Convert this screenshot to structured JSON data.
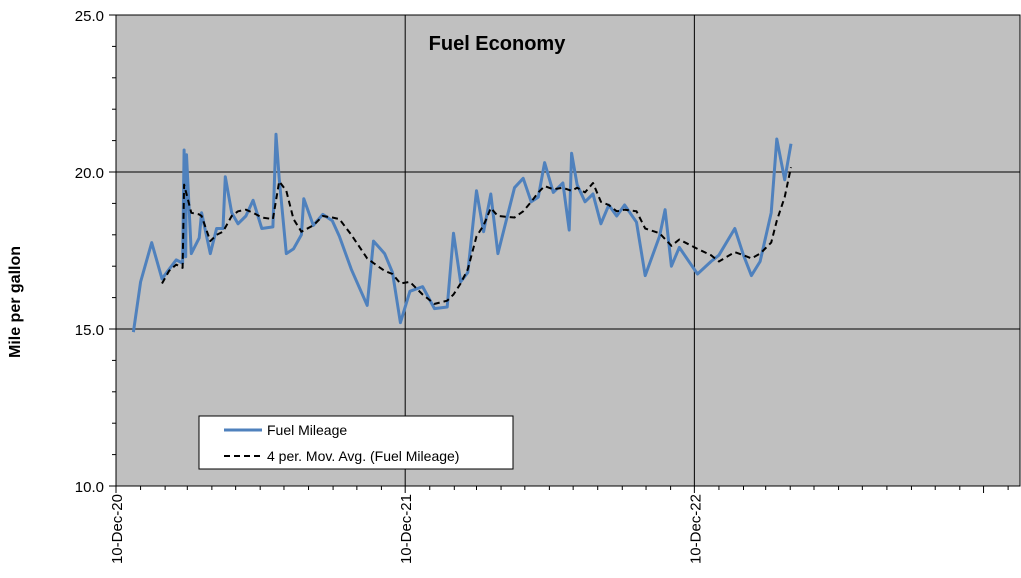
{
  "chart_data": {
    "type": "line",
    "title": "Fuel Economy",
    "xlabel": "",
    "ylabel": "Mile per gallon",
    "ylim": [
      10,
      25
    ],
    "y_ticks": [
      "10.0",
      "15.0",
      "20.0",
      "25.0"
    ],
    "xlim": [
      "2020-12-10",
      "2024-01-25"
    ],
    "x_ticks": [
      {
        "date": "2020-12-10",
        "label": "10-Dec-20"
      },
      {
        "date": "2021-12-10",
        "label": "10-Dec-21"
      },
      {
        "date": "2022-12-10",
        "label": "10-Dec-22"
      }
    ],
    "grid": true,
    "legend_position": "bottom-left",
    "colors": {
      "plot_background": "#c0c0c0",
      "fuel_mileage": "#4f81bd",
      "moving_average": "#000000"
    },
    "series": [
      {
        "name": "Fuel Mileage",
        "style": "solid",
        "points": [
          [
            "2021-01-01",
            14.9
          ],
          [
            "2021-01-10",
            16.5
          ],
          [
            "2021-01-24",
            17.75
          ],
          [
            "2021-02-06",
            16.6
          ],
          [
            "2021-02-15",
            16.9
          ],
          [
            "2021-02-24",
            17.2
          ],
          [
            "2021-03-04",
            17.1
          ],
          [
            "2021-03-06",
            20.7
          ],
          [
            "2021-03-08",
            17.3
          ],
          [
            "2021-03-09",
            20.55
          ],
          [
            "2021-03-15",
            17.4
          ],
          [
            "2021-03-25",
            17.9
          ],
          [
            "2021-03-28",
            18.7
          ],
          [
            "2021-04-08",
            17.4
          ],
          [
            "2021-04-16",
            18.2
          ],
          [
            "2021-04-24",
            18.2
          ],
          [
            "2021-04-27",
            19.85
          ],
          [
            "2021-05-05",
            18.7
          ],
          [
            "2021-05-13",
            18.35
          ],
          [
            "2021-05-23",
            18.6
          ],
          [
            "2021-06-01",
            19.1
          ],
          [
            "2021-06-12",
            18.2
          ],
          [
            "2021-06-26",
            18.25
          ],
          [
            "2021-06-30",
            21.2
          ],
          [
            "2021-07-04",
            19.8
          ],
          [
            "2021-07-13",
            17.4
          ],
          [
            "2021-07-22",
            17.55
          ],
          [
            "2021-08-01",
            18.0
          ],
          [
            "2021-08-04",
            19.15
          ],
          [
            "2021-08-16",
            18.3
          ],
          [
            "2021-08-28",
            18.65
          ],
          [
            "2021-09-09",
            18.45
          ],
          [
            "2021-09-18",
            17.95
          ],
          [
            "2021-10-03",
            16.9
          ],
          [
            "2021-10-23",
            15.75
          ],
          [
            "2021-10-31",
            17.8
          ],
          [
            "2021-11-14",
            17.4
          ],
          [
            "2021-11-24",
            16.8
          ],
          [
            "2021-12-04",
            15.2
          ],
          [
            "2021-12-16",
            16.2
          ],
          [
            "2022-01-01",
            16.35
          ],
          [
            "2022-01-16",
            15.65
          ],
          [
            "2022-02-01",
            15.7
          ],
          [
            "2022-02-09",
            18.05
          ],
          [
            "2022-02-18",
            16.5
          ],
          [
            "2022-02-27",
            16.8
          ],
          [
            "2022-03-10",
            19.4
          ],
          [
            "2022-03-19",
            18.1
          ],
          [
            "2022-03-28",
            19.3
          ],
          [
            "2022-04-06",
            17.4
          ],
          [
            "2022-04-27",
            19.5
          ],
          [
            "2022-05-08",
            19.8
          ],
          [
            "2022-05-18",
            19.05
          ],
          [
            "2022-05-27",
            19.2
          ],
          [
            "2022-06-04",
            20.3
          ],
          [
            "2022-06-15",
            19.35
          ],
          [
            "2022-06-27",
            19.65
          ],
          [
            "2022-07-05",
            18.15
          ],
          [
            "2022-07-08",
            20.6
          ],
          [
            "2022-07-15",
            19.6
          ],
          [
            "2022-07-25",
            19.05
          ],
          [
            "2022-08-04",
            19.3
          ],
          [
            "2022-08-14",
            18.35
          ],
          [
            "2022-08-24",
            18.95
          ],
          [
            "2022-09-03",
            18.6
          ],
          [
            "2022-09-13",
            18.95
          ],
          [
            "2022-09-28",
            18.4
          ],
          [
            "2022-10-09",
            16.7
          ],
          [
            "2022-10-27",
            17.95
          ],
          [
            "2022-11-03",
            18.8
          ],
          [
            "2022-11-11",
            17.0
          ],
          [
            "2022-11-21",
            17.6
          ],
          [
            "2022-12-14",
            16.75
          ],
          [
            "2022-12-31",
            17.15
          ],
          [
            "2023-01-10",
            17.35
          ],
          [
            "2023-01-30",
            18.2
          ],
          [
            "2023-02-10",
            17.35
          ],
          [
            "2023-02-20",
            16.7
          ],
          [
            "2023-03-03",
            17.15
          ],
          [
            "2023-03-17",
            18.7
          ],
          [
            "2023-03-24",
            21.05
          ],
          [
            "2023-04-03",
            19.75
          ],
          [
            "2023-04-11",
            20.9
          ]
        ]
      },
      {
        "name": "4 per. Mov. Avg. (Fuel Mileage)",
        "style": "dashed",
        "points": [
          [
            "2021-02-06",
            16.45
          ],
          [
            "2021-02-15",
            16.85
          ],
          [
            "2021-02-24",
            17.05
          ],
          [
            "2021-03-04",
            16.95
          ],
          [
            "2021-03-06",
            19.6
          ],
          [
            "2021-03-15",
            18.7
          ],
          [
            "2021-03-25",
            18.65
          ],
          [
            "2021-03-28",
            18.6
          ],
          [
            "2021-04-08",
            17.8
          ],
          [
            "2021-04-16",
            18.0
          ],
          [
            "2021-04-24",
            18.1
          ],
          [
            "2021-05-05",
            18.6
          ],
          [
            "2021-05-13",
            18.75
          ],
          [
            "2021-05-23",
            18.8
          ],
          [
            "2021-06-01",
            18.7
          ],
          [
            "2021-06-12",
            18.55
          ],
          [
            "2021-06-26",
            18.5
          ],
          [
            "2021-07-04",
            19.7
          ],
          [
            "2021-07-13",
            19.4
          ],
          [
            "2021-07-22",
            18.5
          ],
          [
            "2021-08-01",
            18.1
          ],
          [
            "2021-08-16",
            18.3
          ],
          [
            "2021-08-28",
            18.6
          ],
          [
            "2021-09-09",
            18.55
          ],
          [
            "2021-09-18",
            18.5
          ],
          [
            "2021-10-03",
            18.0
          ],
          [
            "2021-10-23",
            17.25
          ],
          [
            "2021-10-31",
            17.1
          ],
          [
            "2021-11-14",
            16.85
          ],
          [
            "2021-11-24",
            16.75
          ],
          [
            "2021-12-04",
            16.45
          ],
          [
            "2021-12-16",
            16.5
          ],
          [
            "2022-01-01",
            16.1
          ],
          [
            "2022-01-16",
            15.8
          ],
          [
            "2022-02-01",
            15.9
          ],
          [
            "2022-02-09",
            16.1
          ],
          [
            "2022-02-18",
            16.45
          ],
          [
            "2022-02-27",
            16.9
          ],
          [
            "2022-03-10",
            17.95
          ],
          [
            "2022-03-19",
            18.3
          ],
          [
            "2022-03-28",
            18.85
          ],
          [
            "2022-04-06",
            18.6
          ],
          [
            "2022-04-27",
            18.55
          ],
          [
            "2022-05-08",
            18.75
          ],
          [
            "2022-05-18",
            19.05
          ],
          [
            "2022-05-27",
            19.35
          ],
          [
            "2022-06-04",
            19.55
          ],
          [
            "2022-06-15",
            19.45
          ],
          [
            "2022-06-27",
            19.5
          ],
          [
            "2022-07-08",
            19.4
          ],
          [
            "2022-07-15",
            19.5
          ],
          [
            "2022-07-25",
            19.35
          ],
          [
            "2022-08-04",
            19.65
          ],
          [
            "2022-08-14",
            19.05
          ],
          [
            "2022-08-24",
            18.95
          ],
          [
            "2022-09-03",
            18.75
          ],
          [
            "2022-09-13",
            18.8
          ],
          [
            "2022-09-28",
            18.75
          ],
          [
            "2022-10-09",
            18.2
          ],
          [
            "2022-10-27",
            18.05
          ],
          [
            "2022-11-11",
            17.65
          ],
          [
            "2022-11-21",
            17.85
          ],
          [
            "2022-12-14",
            17.55
          ],
          [
            "2022-12-31",
            17.35
          ],
          [
            "2023-01-10",
            17.15
          ],
          [
            "2023-01-30",
            17.45
          ],
          [
            "2023-02-10",
            17.35
          ],
          [
            "2023-02-20",
            17.25
          ],
          [
            "2023-03-03",
            17.4
          ],
          [
            "2023-03-17",
            17.75
          ],
          [
            "2023-03-24",
            18.45
          ],
          [
            "2023-04-03",
            19.2
          ],
          [
            "2023-04-11",
            20.15
          ]
        ]
      }
    ]
  }
}
